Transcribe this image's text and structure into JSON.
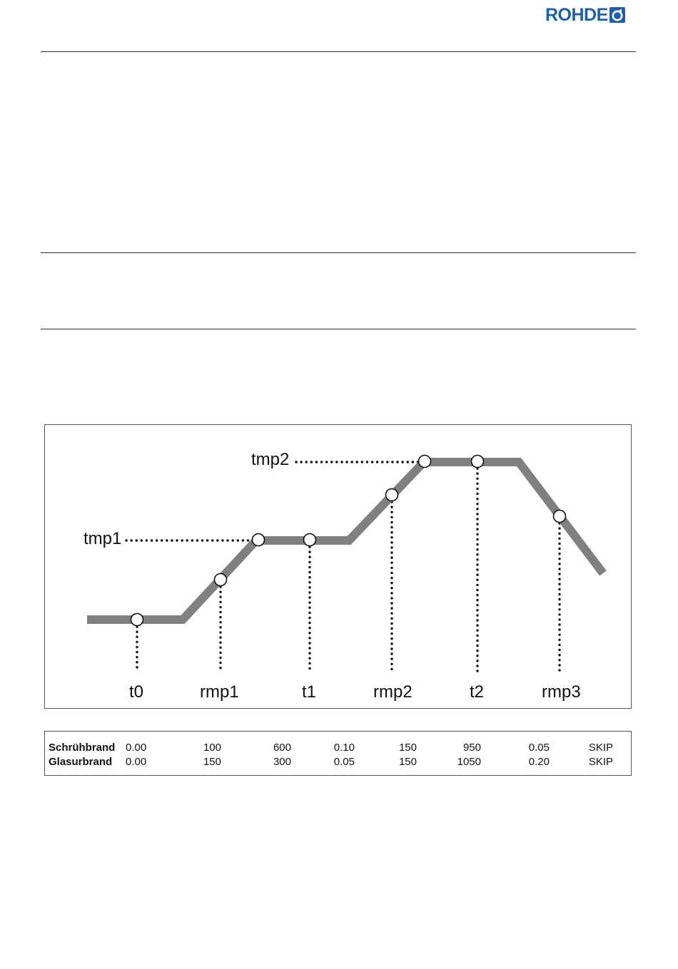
{
  "header": {
    "logo_text": "ROHDE",
    "brand_color": "#1f5fa8"
  },
  "diagram": {
    "level_labels": [
      "tmp1",
      "tmp2"
    ],
    "segment_labels": [
      "t0",
      "rmp1",
      "t1",
      "rmp2",
      "t2",
      "rmp3"
    ],
    "curve_color": "#808080"
  },
  "program_table": {
    "rows": [
      {
        "name": "Schrühbrand",
        "values": [
          "0.00",
          "100",
          "600",
          "0.10",
          "150",
          "950",
          "0.05",
          "SKIP"
        ]
      },
      {
        "name": "Glasurbrand",
        "values": [
          "0.00",
          "150",
          "300",
          "0.05",
          "150",
          "1050",
          "0.20",
          "SKIP"
        ]
      }
    ]
  }
}
